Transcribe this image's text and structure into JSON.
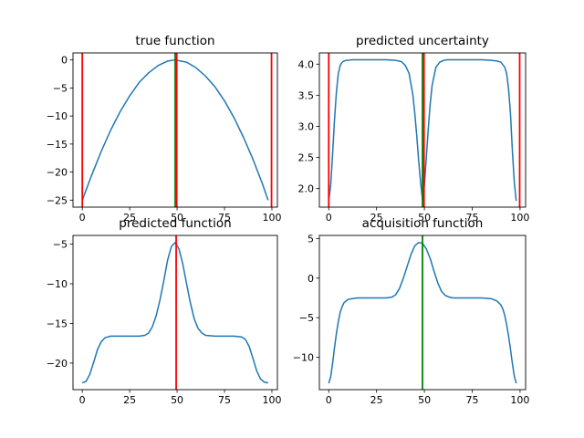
{
  "chart_data": [
    {
      "type": "line",
      "title": "true function",
      "xlabel": "",
      "ylabel": "",
      "xlim": [
        -4.9,
        102.9
      ],
      "ylim": [
        -26.25,
        1.25
      ],
      "xticks": [
        0,
        25,
        50,
        75,
        100
      ],
      "xtick_labels": [
        "0",
        "25",
        "50",
        "75",
        "100"
      ],
      "yticks": [
        0,
        -5,
        -10,
        -15,
        -20,
        -25
      ],
      "ytick_labels": [
        "0",
        "−5",
        "−10",
        "−15",
        "−20",
        "−25"
      ],
      "grid": false,
      "legend": "none",
      "series": [
        {
          "color": "#1f77b4",
          "x": [
            0,
            5,
            10,
            15,
            20,
            25,
            30,
            35,
            40,
            45,
            49,
            55,
            60,
            65,
            70,
            75,
            80,
            85,
            90,
            95,
            98
          ],
          "y": [
            -25,
            -20.5,
            -16.3,
            -12.5,
            -9.2,
            -6.4,
            -4.0,
            -2.3,
            -1.0,
            -0.2,
            0,
            -0.4,
            -1.4,
            -2.9,
            -4.8,
            -7.3,
            -10.3,
            -13.8,
            -17.7,
            -22.1,
            -25
          ]
        }
      ],
      "vlines": [
        {
          "x": 0,
          "color": "#ff0000"
        },
        {
          "x": 49,
          "color": "#008000"
        },
        {
          "x": 49.8,
          "color": "#ff0000"
        },
        {
          "x": 99.8,
          "color": "#ff0000"
        }
      ]
    },
    {
      "type": "line",
      "title": "predicted uncertainty",
      "xlabel": "",
      "ylabel": "",
      "xlim": [
        -4.9,
        102.9
      ],
      "ylim": [
        1.7,
        4.18
      ],
      "xticks": [
        0,
        25,
        50,
        75,
        100
      ],
      "xtick_labels": [
        "0",
        "25",
        "50",
        "75",
        "100"
      ],
      "yticks": [
        2.0,
        2.5,
        3.0,
        3.5,
        4.0
      ],
      "ytick_labels": [
        "2.0",
        "2.5",
        "3.0",
        "3.5",
        "4.0"
      ],
      "grid": false,
      "legend": "none",
      "series": [
        {
          "color": "#1f77b4",
          "x": [
            0,
            1,
            2,
            3,
            4,
            5,
            6,
            7,
            8,
            9,
            10,
            12,
            15,
            20,
            25,
            30,
            35,
            38,
            40,
            42,
            44,
            45,
            46,
            47,
            48,
            49,
            50,
            51,
            52,
            53,
            54,
            56,
            58,
            60,
            62,
            65,
            70,
            75,
            80,
            85,
            88,
            90,
            92,
            93,
            94,
            95,
            96,
            97,
            98
          ],
          "y": [
            1.8,
            2.05,
            2.55,
            3.1,
            3.55,
            3.85,
            3.98,
            4.03,
            4.05,
            4.06,
            4.06,
            4.07,
            4.07,
            4.07,
            4.07,
            4.07,
            4.06,
            4.04,
            3.98,
            3.85,
            3.5,
            3.2,
            2.85,
            2.45,
            2.1,
            1.82,
            2.05,
            2.5,
            2.95,
            3.35,
            3.65,
            3.95,
            4.03,
            4.06,
            4.07,
            4.07,
            4.07,
            4.07,
            4.07,
            4.06,
            4.05,
            4.03,
            3.95,
            3.85,
            3.6,
            3.2,
            2.6,
            2.1,
            1.8
          ]
        }
      ],
      "vlines": [
        {
          "x": 0,
          "color": "#ff0000"
        },
        {
          "x": 49,
          "color": "#008000"
        },
        {
          "x": 49.8,
          "color": "#ff0000"
        },
        {
          "x": 99.8,
          "color": "#ff0000"
        }
      ]
    },
    {
      "type": "line",
      "title": "predicted function",
      "xlabel": "",
      "ylabel": "",
      "xlim": [
        -4.9,
        102.9
      ],
      "ylim": [
        -23.35,
        -3.9
      ],
      "xticks": [
        0,
        25,
        50,
        75,
        100
      ],
      "xtick_labels": [
        "0",
        "25",
        "50",
        "75",
        "100"
      ],
      "yticks": [
        -5,
        -10,
        -15,
        -20
      ],
      "ytick_labels": [
        "−5",
        "−10",
        "−15",
        "−20"
      ],
      "grid": false,
      "legend": "none",
      "series": [
        {
          "color": "#1f77b4",
          "x": [
            0,
            2,
            4,
            6,
            8,
            10,
            12,
            15,
            20,
            25,
            30,
            33,
            35,
            37,
            39,
            41,
            43,
            45,
            47,
            49,
            51,
            53,
            55,
            57,
            59,
            61,
            63,
            65,
            70,
            75,
            80,
            84,
            86,
            88,
            90,
            92,
            94,
            96,
            98
          ],
          "y": [
            -22.5,
            -22.3,
            -21.4,
            -19.9,
            -18.3,
            -17.3,
            -16.8,
            -16.6,
            -16.6,
            -16.6,
            -16.6,
            -16.5,
            -16.2,
            -15.4,
            -14.0,
            -12.0,
            -9.6,
            -7.0,
            -5.3,
            -4.8,
            -5.6,
            -7.5,
            -10.0,
            -12.4,
            -14.4,
            -15.6,
            -16.2,
            -16.5,
            -16.6,
            -16.6,
            -16.6,
            -16.7,
            -17.0,
            -17.9,
            -19.4,
            -21.0,
            -22.0,
            -22.4,
            -22.5
          ]
        }
      ],
      "vlines": [
        {
          "x": 49.5,
          "color": "#ff0000"
        }
      ]
    },
    {
      "type": "line",
      "title": "acquisition function",
      "xlabel": "",
      "ylabel": "",
      "xlim": [
        -4.9,
        102.9
      ],
      "ylim": [
        -14.1,
        5.4
      ],
      "xticks": [
        0,
        25,
        50,
        75,
        100
      ],
      "xtick_labels": [
        "0",
        "25",
        "50",
        "75",
        "100"
      ],
      "yticks": [
        5,
        0,
        -5,
        -10
      ],
      "ytick_labels": [
        "5",
        "0",
        "−5",
        "−10"
      ],
      "grid": false,
      "legend": "none",
      "series": [
        {
          "color": "#1f77b4",
          "x": [
            0,
            1,
            2,
            3,
            4,
            5,
            6,
            7,
            8,
            10,
            12,
            15,
            20,
            25,
            30,
            33,
            35,
            37,
            39,
            41,
            43,
            45,
            47,
            49,
            51,
            53,
            55,
            57,
            59,
            61,
            63,
            65,
            70,
            75,
            80,
            85,
            88,
            90,
            91,
            92,
            93,
            94,
            95,
            96,
            97,
            98
          ],
          "y": [
            -13.3,
            -12.5,
            -10.8,
            -8.8,
            -7.0,
            -5.5,
            -4.3,
            -3.6,
            -3.1,
            -2.7,
            -2.6,
            -2.5,
            -2.5,
            -2.5,
            -2.5,
            -2.4,
            -2.1,
            -1.3,
            0.0,
            1.5,
            3.0,
            4.1,
            4.5,
            4.4,
            3.7,
            2.5,
            0.9,
            -0.6,
            -1.7,
            -2.2,
            -2.4,
            -2.5,
            -2.5,
            -2.5,
            -2.5,
            -2.6,
            -2.9,
            -3.4,
            -3.9,
            -4.7,
            -5.9,
            -7.3,
            -9.0,
            -10.8,
            -12.4,
            -13.3
          ]
        }
      ],
      "vlines": [
        {
          "x": 49,
          "color": "#008000"
        }
      ]
    }
  ]
}
